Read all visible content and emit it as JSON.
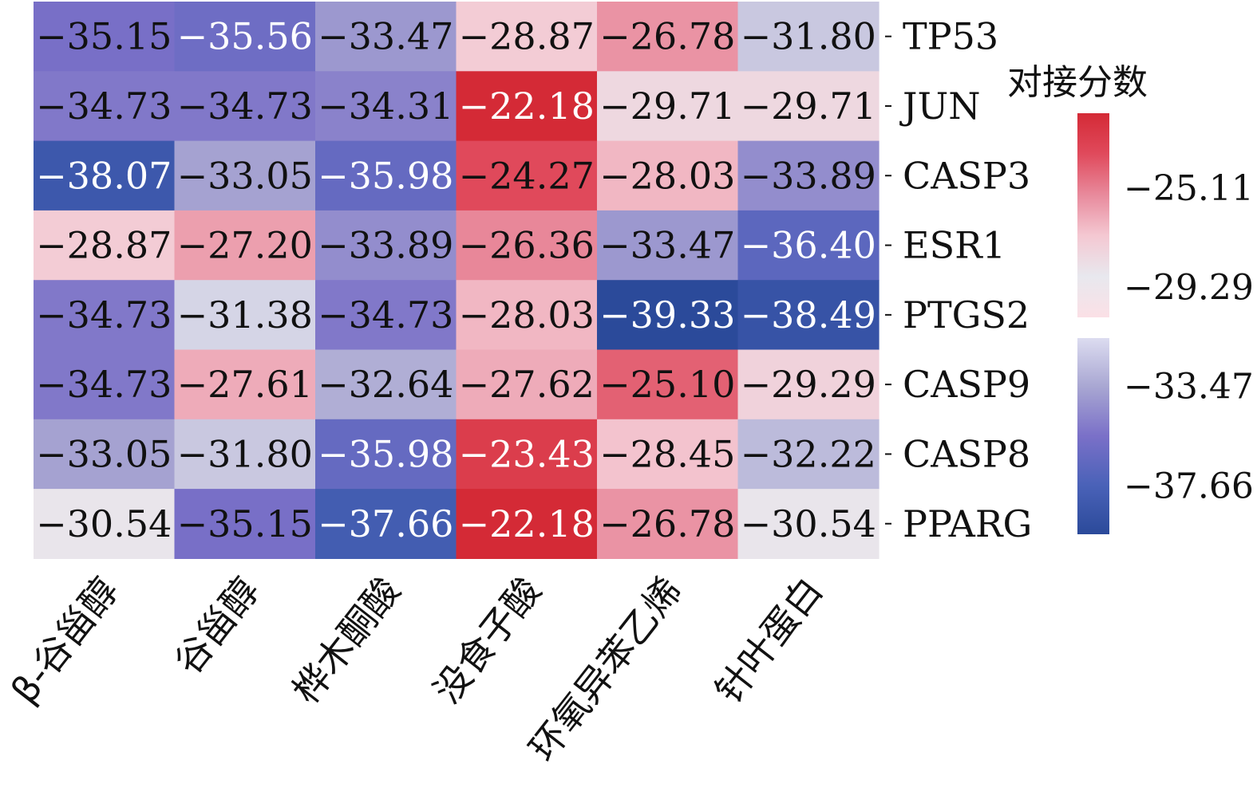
{
  "chart_data": {
    "type": "heatmap",
    "rows": [
      "TP53",
      "JUN",
      "CASP3",
      "ESR1",
      "PTGS2",
      "CASP9",
      "CASP8",
      "PPARG"
    ],
    "columns": [
      "β-谷甾醇",
      "谷甾醇",
      "桦木酮酸",
      "没食子酸",
      "环氧异苯乙烯",
      "针叶蛋白"
    ],
    "values": [
      [
        -35.15,
        -35.56,
        -33.47,
        -28.87,
        -26.78,
        -31.8
      ],
      [
        -34.73,
        -34.73,
        -34.31,
        -22.18,
        -29.71,
        -29.71
      ],
      [
        -38.07,
        -33.05,
        -35.98,
        -24.27,
        -28.03,
        -33.89
      ],
      [
        -28.87,
        -27.2,
        -33.89,
        -26.36,
        -33.47,
        -36.4
      ],
      [
        -34.73,
        -31.38,
        -34.73,
        -28.03,
        -39.33,
        -38.49
      ],
      [
        -34.73,
        -27.61,
        -32.64,
        -27.62,
        -25.1,
        -29.29
      ],
      [
        -33.05,
        -31.8,
        -35.98,
        -23.43,
        -28.45,
        -32.22
      ],
      [
        -30.54,
        -35.15,
        -37.66,
        -22.18,
        -26.78,
        -30.54
      ]
    ],
    "value_labels": [
      [
        "−35.15",
        "−35.56",
        "−33.47",
        "−28.87",
        "−26.78",
        "−31.80"
      ],
      [
        "−34.73",
        "−34.73",
        "−34.31",
        "−22.18",
        "−29.71",
        "−29.71"
      ],
      [
        "−38.07",
        "−33.05",
        "−35.98",
        "−24.27",
        "−28.03",
        "−33.89"
      ],
      [
        "−28.87",
        "−27.20",
        "−33.89",
        "−26.36",
        "−33.47",
        "−36.40"
      ],
      [
        "−34.73",
        "−31.38",
        "−34.73",
        "−28.03",
        "−39.33",
        "−38.49"
      ],
      [
        "−34.73",
        "−27.61",
        "−32.64",
        "−27.62",
        "−25.10",
        "−29.29"
      ],
      [
        "−33.05",
        "−31.80",
        "−35.98",
        "−23.43",
        "−28.45",
        "−32.22"
      ],
      [
        "−30.54",
        "−35.15",
        "−37.66",
        "−22.18",
        "−26.78",
        "−30.54"
      ]
    ],
    "colorbar": {
      "title": "对接分数",
      "ticks": [
        -25.11,
        -29.29,
        -33.47,
        -37.66
      ],
      "tick_labels": [
        "−25.11",
        "−29.29",
        "−33.47",
        "−37.66"
      ],
      "range": [
        -39.33,
        -22.18
      ],
      "colors": [
        "#2b4a9a",
        "#4a62b8",
        "#7a70c8",
        "#a8a6d2",
        "#e8e8ee",
        "#f4c8d2",
        "#e88a9c",
        "#e04a5c",
        "#d42a36"
      ]
    }
  }
}
